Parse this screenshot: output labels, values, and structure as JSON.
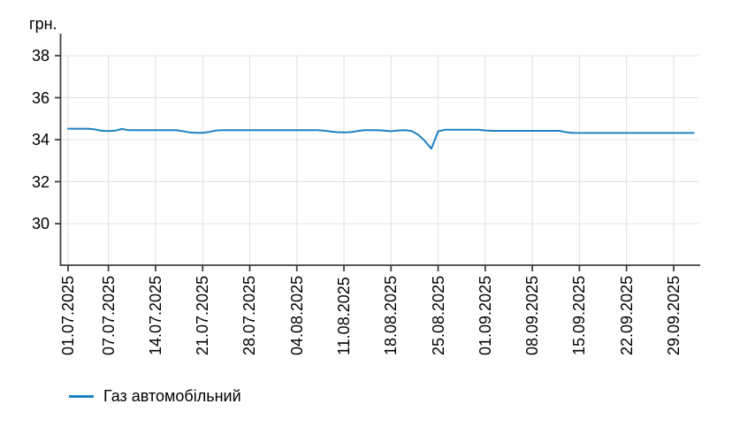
{
  "page": {
    "background": "#ffffff"
  },
  "colors": {
    "line": "#1e81c2",
    "grid": "#e0e0e0",
    "axis": "#404040",
    "text": "#000000"
  },
  "chart_data": {
    "type": "line",
    "title": "",
    "unit": "грн.",
    "ylabel": "грн.",
    "xlabel": "",
    "grid": true,
    "legend_position": "bottom-left",
    "y_ticks": [
      30,
      32,
      34,
      36,
      38
    ],
    "ylim": [
      28,
      39
    ],
    "x_start_date": "01.07.2025",
    "x_interval": "daily",
    "x_ticks": [
      {
        "label": "01.07.2025",
        "day": 0
      },
      {
        "label": "07.07.2025",
        "day": 6
      },
      {
        "label": "14.07.2025",
        "day": 13
      },
      {
        "label": "21.07.2025",
        "day": 20
      },
      {
        "label": "28.07.2025",
        "day": 27
      },
      {
        "label": "04.08.2025",
        "day": 34
      },
      {
        "label": "11.08.2025",
        "day": 41
      },
      {
        "label": "18.08.2025",
        "day": 48
      },
      {
        "label": "25.08.2025",
        "day": 55
      },
      {
        "label": "01.09.2025",
        "day": 62
      },
      {
        "label": "08.09.2025",
        "day": 69
      },
      {
        "label": "15.09.2025",
        "day": 76
      },
      {
        "label": "22.09.2025",
        "day": 83
      },
      {
        "label": "29.09.2025",
        "day": 90
      }
    ],
    "series": [
      {
        "name": "Газ автомобільний",
        "color": "#1e81c2",
        "values": [
          34.52,
          34.52,
          34.52,
          34.52,
          34.49,
          34.42,
          34.41,
          34.43,
          34.51,
          34.45,
          34.45,
          34.45,
          34.45,
          34.45,
          34.45,
          34.45,
          34.45,
          34.41,
          34.35,
          34.33,
          34.33,
          34.37,
          34.44,
          34.45,
          34.45,
          34.45,
          34.45,
          34.45,
          34.45,
          34.45,
          34.45,
          34.45,
          34.45,
          34.45,
          34.45,
          34.45,
          34.45,
          34.45,
          34.43,
          34.39,
          34.36,
          34.35,
          34.36,
          34.41,
          34.45,
          34.45,
          34.45,
          34.43,
          34.4,
          34.44,
          34.45,
          34.42,
          34.25,
          33.95,
          33.57,
          34.4,
          34.47,
          34.47,
          34.47,
          34.47,
          34.47,
          34.47,
          34.44,
          34.42,
          34.42,
          34.42,
          34.42,
          34.42,
          34.42,
          34.42,
          34.42,
          34.42,
          34.42,
          34.42,
          34.36,
          34.32,
          34.32,
          34.32,
          34.32,
          34.32,
          34.32,
          34.32,
          34.32,
          34.32,
          34.32,
          34.32,
          34.32,
          34.32,
          34.32,
          34.32,
          34.32,
          34.32,
          34.32,
          34.32
        ]
      }
    ]
  },
  "legend": {
    "items": [
      {
        "label": "Газ автомобільний",
        "color": "#1e81c2"
      }
    ]
  }
}
